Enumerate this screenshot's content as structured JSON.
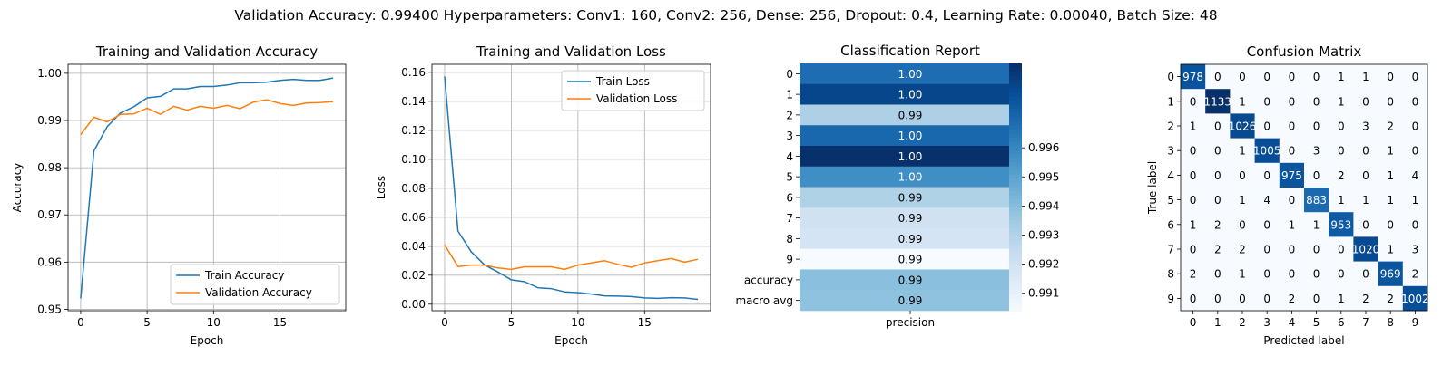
{
  "suptitle": "Validation Accuracy: 0.99400   Hyperparameters: Conv1: 160, Conv2: 256, Dense: 256, Dropout: 0.4, Learning Rate: 0.00040, Batch Size: 48",
  "colors": {
    "train": "#1f77b4",
    "validation": "#ff7f0e"
  },
  "chart_data": [
    {
      "type": "line",
      "title": "Training and Validation Accuracy",
      "xlabel": "Epoch",
      "ylabel": "Accuracy",
      "x": [
        0,
        1,
        2,
        3,
        4,
        5,
        6,
        7,
        8,
        9,
        10,
        11,
        12,
        13,
        14,
        15,
        16,
        17,
        18,
        19
      ],
      "xticks": [
        0,
        5,
        10,
        15
      ],
      "yticks": [
        0.95,
        0.96,
        0.97,
        0.98,
        0.99,
        1.0
      ],
      "ytick_labels": [
        "0.95",
        "0.96",
        "0.97",
        "0.98",
        "0.99",
        "1.00"
      ],
      "xlim": [
        -0.95,
        19.95
      ],
      "ylim": [
        0.9497,
        1.0019
      ],
      "grid": true,
      "legend_position": "lower right",
      "series": [
        {
          "name": "Train Accuracy",
          "values": [
            0.9523,
            0.9836,
            0.9887,
            0.9916,
            0.9929,
            0.9948,
            0.9951,
            0.9967,
            0.9967,
            0.9972,
            0.9972,
            0.9975,
            0.998,
            0.998,
            0.9981,
            0.9985,
            0.9987,
            0.9985,
            0.9985,
            0.999
          ]
        },
        {
          "name": "Validation Accuracy",
          "values": [
            0.987,
            0.9907,
            0.9897,
            0.9913,
            0.9914,
            0.9926,
            0.9913,
            0.993,
            0.9922,
            0.993,
            0.9926,
            0.9932,
            0.9925,
            0.9939,
            0.9944,
            0.9936,
            0.9932,
            0.9937,
            0.9938,
            0.994
          ]
        }
      ]
    },
    {
      "type": "line",
      "title": "Training and Validation Loss",
      "xlabel": "Epoch",
      "ylabel": "Loss",
      "x": [
        0,
        1,
        2,
        3,
        4,
        5,
        6,
        7,
        8,
        9,
        10,
        11,
        12,
        13,
        14,
        15,
        16,
        17,
        18,
        19
      ],
      "xticks": [
        0,
        5,
        10,
        15
      ],
      "yticks": [
        0.0,
        0.02,
        0.04,
        0.06,
        0.08,
        0.1,
        0.12,
        0.14,
        0.16
      ],
      "ytick_labels": [
        "0.00",
        "0.02",
        "0.04",
        "0.06",
        "0.08",
        "0.10",
        "0.12",
        "0.14",
        "0.16"
      ],
      "xlim": [
        -0.95,
        19.95
      ],
      "ylim": [
        -0.0045,
        0.1655
      ],
      "grid": true,
      "legend_position": "upper right",
      "series": [
        {
          "name": "Train Loss",
          "values": [
            0.1572,
            0.0505,
            0.0361,
            0.0271,
            0.0222,
            0.0168,
            0.0155,
            0.0113,
            0.0107,
            0.0085,
            0.008,
            0.007,
            0.0057,
            0.0056,
            0.0053,
            0.0043,
            0.004,
            0.0045,
            0.0043,
            0.0033
          ]
        },
        {
          "name": "Validation Loss",
          "values": [
            0.041,
            0.026,
            0.027,
            0.027,
            0.025,
            0.024,
            0.0258,
            0.0258,
            0.0258,
            0.024,
            0.027,
            0.0285,
            0.03,
            0.0275,
            0.0255,
            0.0285,
            0.03,
            0.0315,
            0.029,
            0.031
          ]
        }
      ]
    },
    {
      "type": "heatmap",
      "title": "Classification Report",
      "xlabel": "precision",
      "rows": [
        "0",
        "1",
        "2",
        "3",
        "4",
        "5",
        "6",
        "7",
        "8",
        "9",
        "accuracy",
        "macro avg"
      ],
      "values": [
        0.9969,
        0.9982,
        0.9932,
        0.9971,
        0.9989,
        0.9958,
        0.9931,
        0.9921,
        0.9919,
        0.9904,
        0.994,
        0.9939
      ],
      "labels": [
        "1.00",
        "1.00",
        "0.99",
        "1.00",
        "1.00",
        "1.00",
        "0.99",
        "0.99",
        "0.99",
        "0.99",
        "0.99",
        "0.99"
      ],
      "colorbar_ticks": [
        0.991,
        0.992,
        0.993,
        0.994,
        0.995,
        0.996
      ],
      "colorbar_tick_labels": [
        "0.991",
        "0.992",
        "0.993",
        "0.994",
        "0.995",
        "0.996"
      ],
      "vmin": 0.9904,
      "vmax": 0.9989,
      "colormap": "Blues"
    },
    {
      "type": "heatmap",
      "title": "Confusion Matrix",
      "xlabel": "Predicted label",
      "ylabel": "True label",
      "labels": [
        "0",
        "1",
        "2",
        "3",
        "4",
        "5",
        "6",
        "7",
        "8",
        "9"
      ],
      "matrix": [
        [
          978,
          0,
          0,
          0,
          0,
          0,
          1,
          1,
          0,
          0
        ],
        [
          0,
          1133,
          1,
          0,
          0,
          0,
          1,
          0,
          0,
          0
        ],
        [
          1,
          0,
          1026,
          0,
          0,
          0,
          0,
          3,
          2,
          0
        ],
        [
          0,
          0,
          1,
          1005,
          0,
          3,
          0,
          0,
          1,
          0
        ],
        [
          0,
          0,
          0,
          0,
          975,
          0,
          2,
          0,
          1,
          4
        ],
        [
          0,
          0,
          1,
          4,
          0,
          883,
          1,
          1,
          1,
          1
        ],
        [
          1,
          2,
          0,
          0,
          1,
          1,
          953,
          0,
          0,
          0
        ],
        [
          0,
          2,
          2,
          0,
          0,
          0,
          0,
          1020,
          1,
          3
        ],
        [
          2,
          0,
          1,
          0,
          0,
          0,
          0,
          0,
          969,
          2
        ],
        [
          0,
          0,
          0,
          0,
          2,
          0,
          1,
          2,
          2,
          1002
        ]
      ],
      "colormap": "Blues"
    }
  ]
}
